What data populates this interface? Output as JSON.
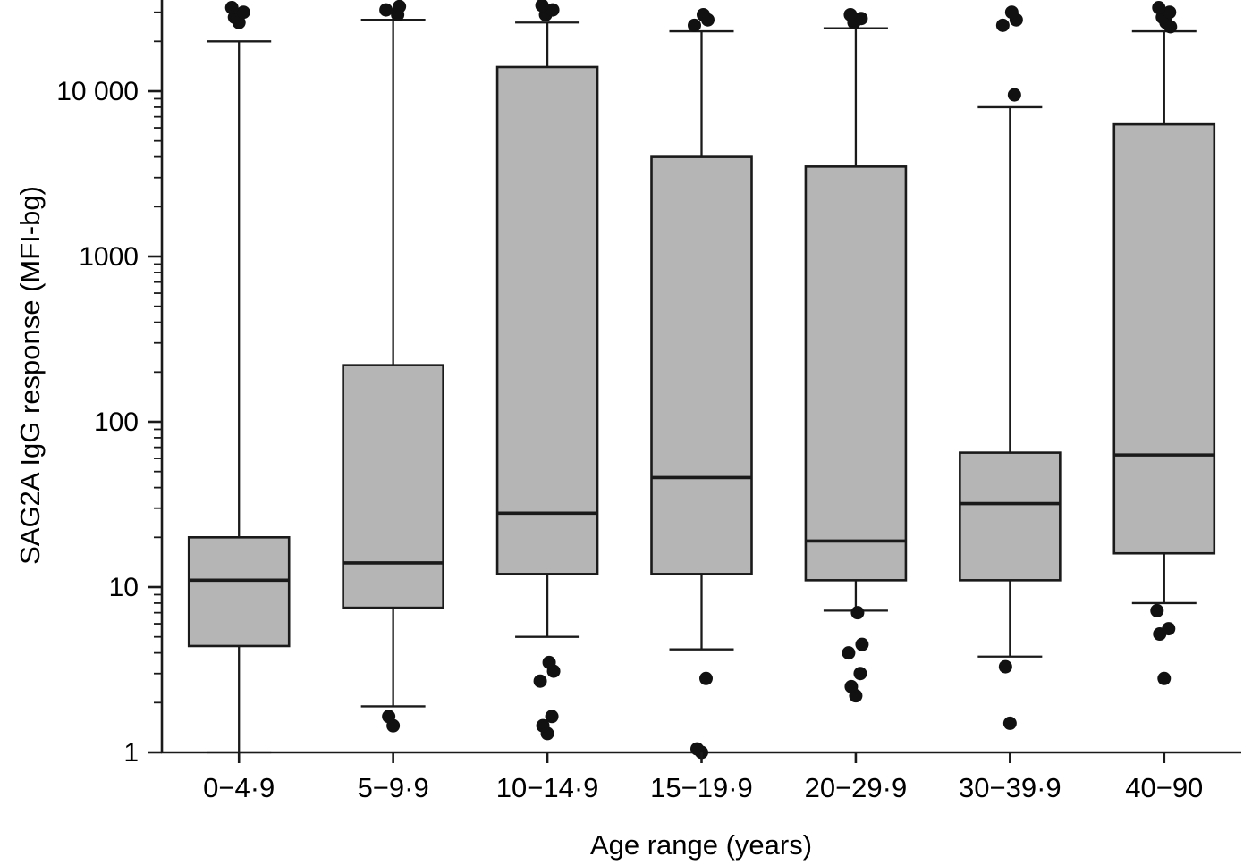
{
  "chart_data": {
    "type": "box",
    "title": "",
    "xlabel": "Age range (years)",
    "ylabel": "SAG2A IgG response (MFI-bg)",
    "y_scale": "log10",
    "ylim": [
      1,
      34000
    ],
    "grid": false,
    "yticks": [
      {
        "value": 1,
        "label": "1"
      },
      {
        "value": 10,
        "label": "10"
      },
      {
        "value": 100,
        "label": "100"
      },
      {
        "value": 1000,
        "label": "1000"
      },
      {
        "value": 10000,
        "label": "10 000"
      }
    ],
    "categories": [
      "0−4·9",
      "5−9·9",
      "10−14·9",
      "15−19·9",
      "20−29·9",
      "30−39·9",
      "40−90"
    ],
    "boxes": [
      {
        "label": "0−4·9",
        "whisker_low": 1,
        "q1": 4.4,
        "median": 11,
        "q3": 20,
        "whisker_high": 20000,
        "outliers": [
          26000,
          28000,
          30000,
          32000
        ]
      },
      {
        "label": "5−9·9",
        "whisker_low": 1.9,
        "q1": 7.5,
        "median": 14,
        "q3": 220,
        "whisker_high": 27000,
        "outliers": [
          1.45,
          1.65,
          29000,
          31000,
          32500
        ]
      },
      {
        "label": "10−14·9",
        "whisker_low": 5,
        "q1": 12,
        "median": 28,
        "q3": 14000,
        "whisker_high": 26000,
        "outliers": [
          1.3,
          1.45,
          1.65,
          2.7,
          3.1,
          3.5,
          29000,
          31000,
          33000
        ]
      },
      {
        "label": "15−19·9",
        "whisker_low": 4.2,
        "q1": 12,
        "median": 46,
        "q3": 4000,
        "whisker_high": 23000,
        "outliers": [
          1.0,
          1.05,
          2.8,
          25000,
          27000,
          29000
        ]
      },
      {
        "label": "20−29·9",
        "whisker_low": 7.2,
        "q1": 11,
        "median": 19,
        "q3": 3500,
        "whisker_high": 24000,
        "outliers": [
          2.2,
          2.5,
          3.0,
          4.0,
          4.5,
          7.0,
          26000,
          27500,
          29000
        ]
      },
      {
        "label": "30−39·9",
        "whisker_low": 3.8,
        "q1": 11,
        "median": 32,
        "q3": 65,
        "whisker_high": 8000,
        "outliers": [
          1.5,
          3.3,
          9500,
          25000,
          27000,
          30000
        ]
      },
      {
        "label": "40−90",
        "whisker_low": 8,
        "q1": 16,
        "median": 63,
        "q3": 6300,
        "whisker_high": 23000,
        "outliers": [
          2.8,
          5.2,
          5.6,
          7.2,
          24500,
          26000,
          28000,
          30000,
          32000
        ]
      }
    ],
    "style": {
      "box_fill": "#b5b5b5",
      "stroke": "#1a1a1a",
      "outlier_color": "#111111",
      "background": "#ffffff"
    }
  }
}
